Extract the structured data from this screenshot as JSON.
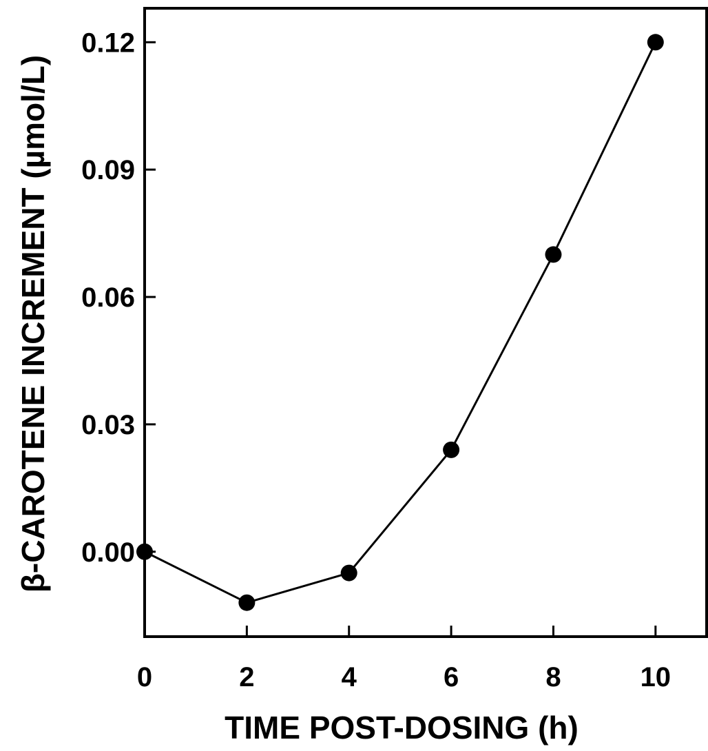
{
  "chart_data": {
    "type": "line",
    "title": "",
    "xlabel": "TIME POST-DOSING (h)",
    "ylabel": "β-CAROTENE INCREMENT  (µmol/L)",
    "xlim": [
      0,
      11
    ],
    "ylim": [
      -0.02,
      0.128
    ],
    "xticks": [
      0,
      2,
      4,
      6,
      8,
      10
    ],
    "xtick_labels": [
      "0",
      "2",
      "4",
      "6",
      "8",
      "10"
    ],
    "yticks": [
      0.0,
      0.03,
      0.06,
      0.09,
      0.12
    ],
    "ytick_labels": [
      "0.00",
      "0.03",
      "0.06",
      "0.09",
      "0.12"
    ],
    "grid": false,
    "legend": "none",
    "colors": {
      "line": "#000000",
      "marker": "#000000"
    },
    "series": [
      {
        "x": [
          0,
          2,
          4,
          6,
          8,
          10
        ],
        "y": [
          0.0,
          -0.012,
          -0.005,
          0.024,
          0.07,
          0.12
        ]
      }
    ]
  }
}
